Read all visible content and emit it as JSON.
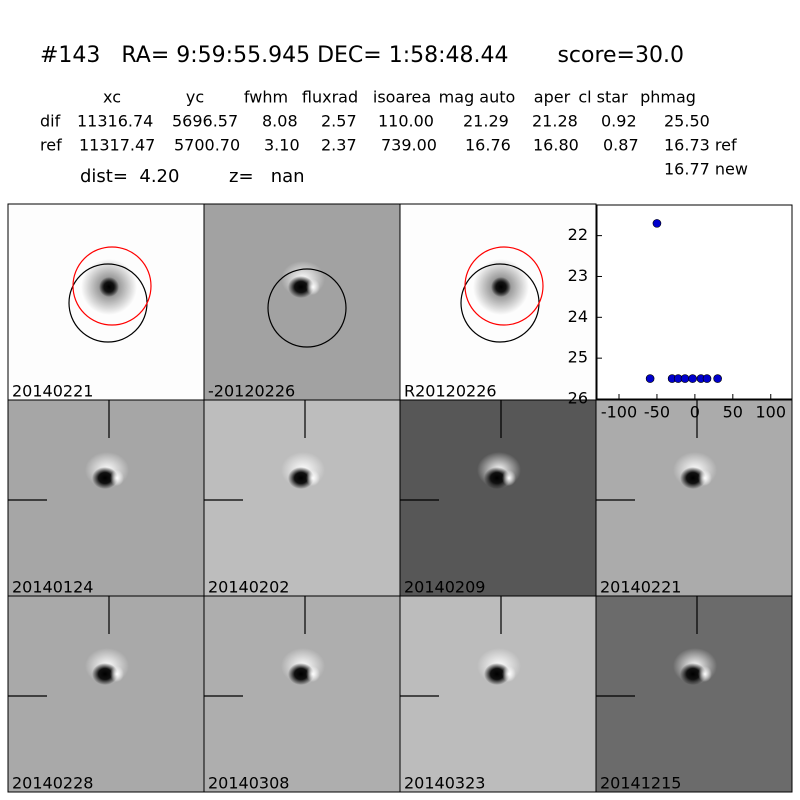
{
  "header": {
    "title": "#143   RA= 9:59:55.945 DEC= 1:58:48.44       score=30.0"
  },
  "table": {
    "columns": [
      "xc",
      "yc",
      "fwhm",
      "fluxrad",
      "isoarea",
      "mag auto",
      "aper",
      "cl star",
      "phmag"
    ],
    "rows": [
      [
        "dif",
        "11316.74",
        "5696.57",
        "8.08",
        "2.57",
        "110.00",
        "21.29",
        "21.28",
        "0.92",
        "25.50"
      ],
      [
        "ref",
        "11317.47",
        "5700.70",
        "3.10",
        "2.37",
        "739.00",
        "16.76",
        "16.80",
        "0.87",
        "16.73 ref"
      ]
    ],
    "extra": "16.77 new"
  },
  "stats": {
    "dist": "dist=  4.20",
    "z": "z=   nan"
  },
  "panels": [
    {
      "label": "20140221"
    },
    {
      "label": "-20120226"
    },
    {
      "label": "R20120226"
    },
    {
      "label": "20140124"
    },
    {
      "label": "20140202"
    },
    {
      "label": "20140209"
    },
    {
      "label": "20140221",
      "highlight": "#ff0000"
    },
    {
      "label": "20140228"
    },
    {
      "label": "20140308"
    },
    {
      "label": "20140323"
    },
    {
      "label": "20141215"
    }
  ],
  "chart_data": {
    "type": "scatter",
    "color": "#0000cc",
    "x": [
      -59,
      -50,
      -30,
      -22,
      -13,
      -3,
      8,
      16,
      30
    ],
    "values": [
      25.5,
      21.7,
      25.5,
      25.5,
      25.5,
      25.5,
      25.5,
      25.5,
      25.5
    ],
    "errors": [
      0.05,
      0.1,
      0.05,
      0.05,
      0.05,
      0.05,
      0.05,
      0.05,
      0.05
    ],
    "xlim": [
      -129,
      128
    ],
    "ylim": [
      26,
      21.25
    ],
    "xticks": [
      -100,
      -50,
      0,
      50,
      100
    ],
    "yticks": [
      22,
      23,
      24,
      25,
      26
    ]
  }
}
